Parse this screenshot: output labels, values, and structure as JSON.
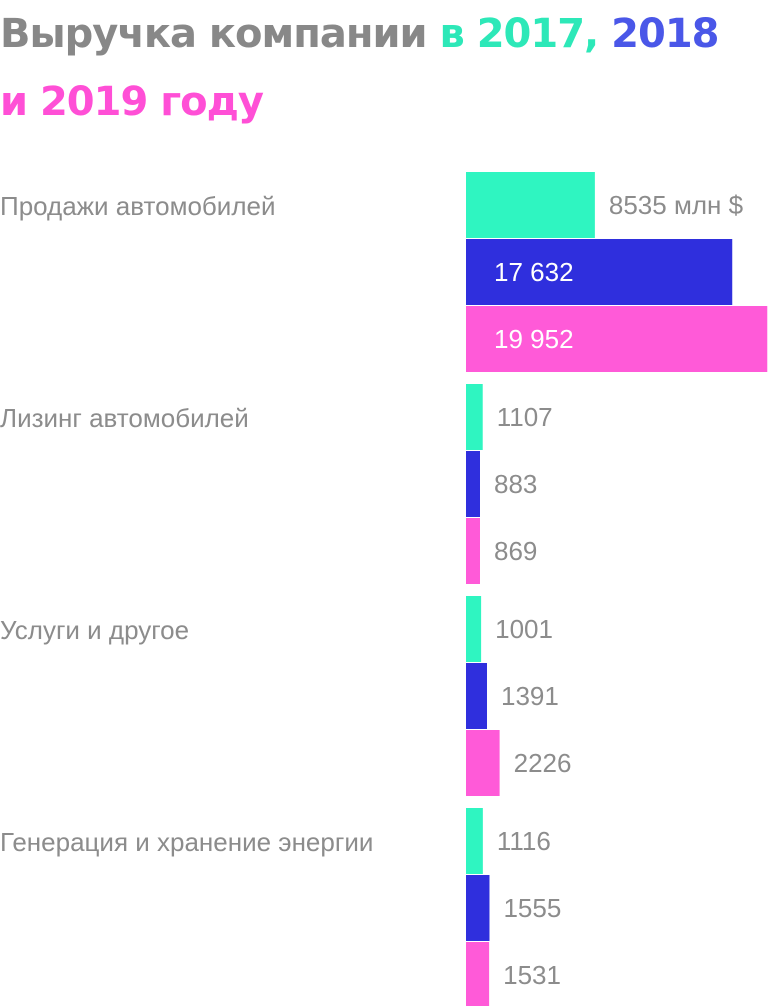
{
  "colors": {
    "title_gray": "#888888",
    "label_gray": "#8c8c8c",
    "text_light": "#ffffff",
    "series": [
      "#2ff5c1",
      "#2f2fdd",
      "#ff5ad8"
    ],
    "title_2017": "#2de8b8",
    "title_2018": "#4a57e8",
    "title_2019": "#ff4fd6"
  },
  "title": {
    "part1": "Выручка компании ",
    "part2": "в 2017, ",
    "part3": "2018",
    "part4": "и 2019 году"
  },
  "chart_data": {
    "type": "bar",
    "orientation": "horizontal",
    "title": "Выручка компании в 2017, 2018 и 2019 году",
    "unit": "млн $",
    "categories": [
      "Продажи автомобилей",
      "Лизинг автомобилей",
      "Услуги и другое",
      "Генерация и хранение энергии"
    ],
    "series": [
      {
        "name": "2017",
        "values": [
          8535,
          1107,
          1001,
          1116
        ]
      },
      {
        "name": "2018",
        "values": [
          17632,
          883,
          1391,
          1555
        ]
      },
      {
        "name": "2019",
        "values": [
          19952,
          869,
          2226,
          1531
        ]
      }
    ],
    "value_labels": [
      [
        "8535 млн $",
        "17 632",
        "19 952"
      ],
      [
        "1107",
        "883",
        "869"
      ],
      [
        "1001",
        "1391",
        "2226"
      ],
      [
        "1116",
        "1555",
        "1531"
      ]
    ],
    "xlim": [
      0,
      20000
    ],
    "grid": false,
    "legend": "in title"
  }
}
